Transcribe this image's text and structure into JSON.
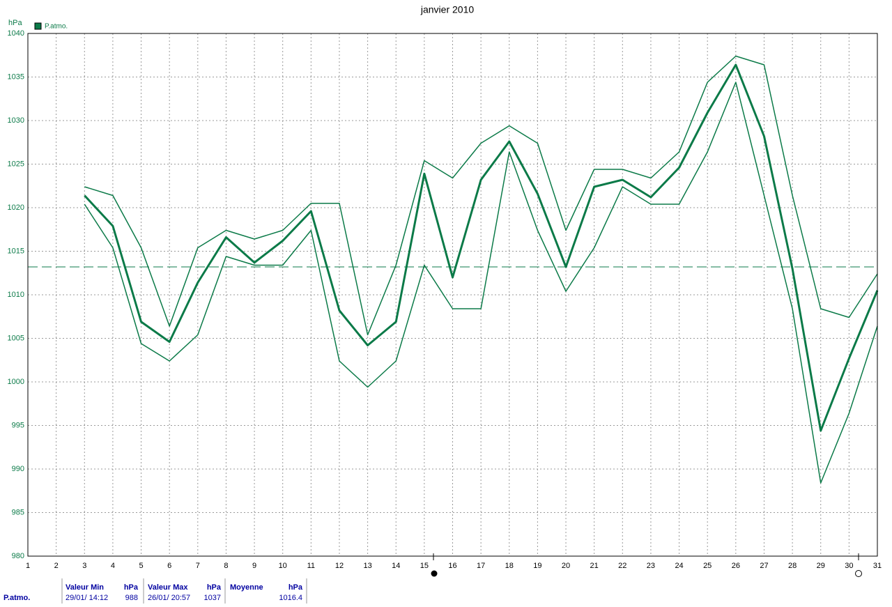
{
  "chart_data": {
    "type": "line",
    "title": "janvier 2010",
    "y_label": "hPa",
    "legend": "P.atmo.",
    "color": "#0b7a48",
    "x": [
      1,
      2,
      3,
      4,
      5,
      6,
      7,
      8,
      9,
      10,
      11,
      12,
      13,
      14,
      15,
      16,
      17,
      18,
      19,
      20,
      21,
      22,
      23,
      24,
      25,
      26,
      27,
      28,
      29,
      30,
      31
    ],
    "values": [
      null,
      null,
      1021.4,
      1017.9,
      1006.9,
      1004.6,
      1011.4,
      1016.6,
      1013.7,
      1016.2,
      1019.6,
      1008.2,
      1004.2,
      1006.9,
      1023.9,
      1012.0,
      1023.2,
      1027.6,
      1021.6,
      1013.2,
      1022.4,
      1023.2,
      1021.2,
      1024.6,
      1030.9,
      1036.4,
      1028.2,
      1013.0,
      994.4,
      1002.7,
      1010.5
    ],
    "max_values": [
      null,
      null,
      1022.4,
      1021.4,
      1015.4,
      1006.4,
      1015.4,
      1017.4,
      1016.4,
      1017.4,
      1020.5,
      1020.5,
      1005.4,
      1013.4,
      1025.4,
      1023.4,
      1027.4,
      1029.4,
      1027.4,
      1017.4,
      1024.4,
      1024.4,
      1023.4,
      1026.4,
      1034.4,
      1037.4,
      1036.4,
      1021.4,
      1008.4,
      1007.4,
      1012.4
    ],
    "min_values": [
      null,
      null,
      1020.4,
      1015.4,
      1004.4,
      1002.4,
      1005.4,
      1014.4,
      1013.4,
      1013.4,
      1017.4,
      1002.4,
      999.4,
      1002.4,
      1013.4,
      1008.4,
      1008.4,
      1026.4,
      1017.4,
      1010.4,
      1015.4,
      1022.4,
      1020.4,
      1020.4,
      1026.4,
      1034.4,
      1021.4,
      1008.4,
      988.4,
      996.4,
      1006.4
    ],
    "reference_line": 1013.2,
    "xlim": [
      1,
      31
    ],
    "xticks": [
      1,
      2,
      3,
      4,
      5,
      6,
      7,
      8,
      9,
      10,
      11,
      12,
      13,
      14,
      15,
      16,
      17,
      18,
      19,
      20,
      21,
      22,
      23,
      24,
      25,
      26,
      27,
      28,
      29,
      30,
      31
    ],
    "ylim": [
      980,
      1040
    ],
    "yticks": [
      980,
      985,
      990,
      995,
      1000,
      1005,
      1010,
      1015,
      1020,
      1025,
      1030,
      1035,
      1040
    ],
    "grid": true
  },
  "stats": {
    "headers": [
      "Valeur Min",
      "hPa",
      "Valeur Max",
      "hPa",
      "Moyenne",
      "hPa"
    ],
    "row_label": "P.atmo.",
    "row": [
      "29/01/ 14:12",
      988,
      "26/01/ 20:57",
      1037,
      "",
      1016.4
    ]
  }
}
